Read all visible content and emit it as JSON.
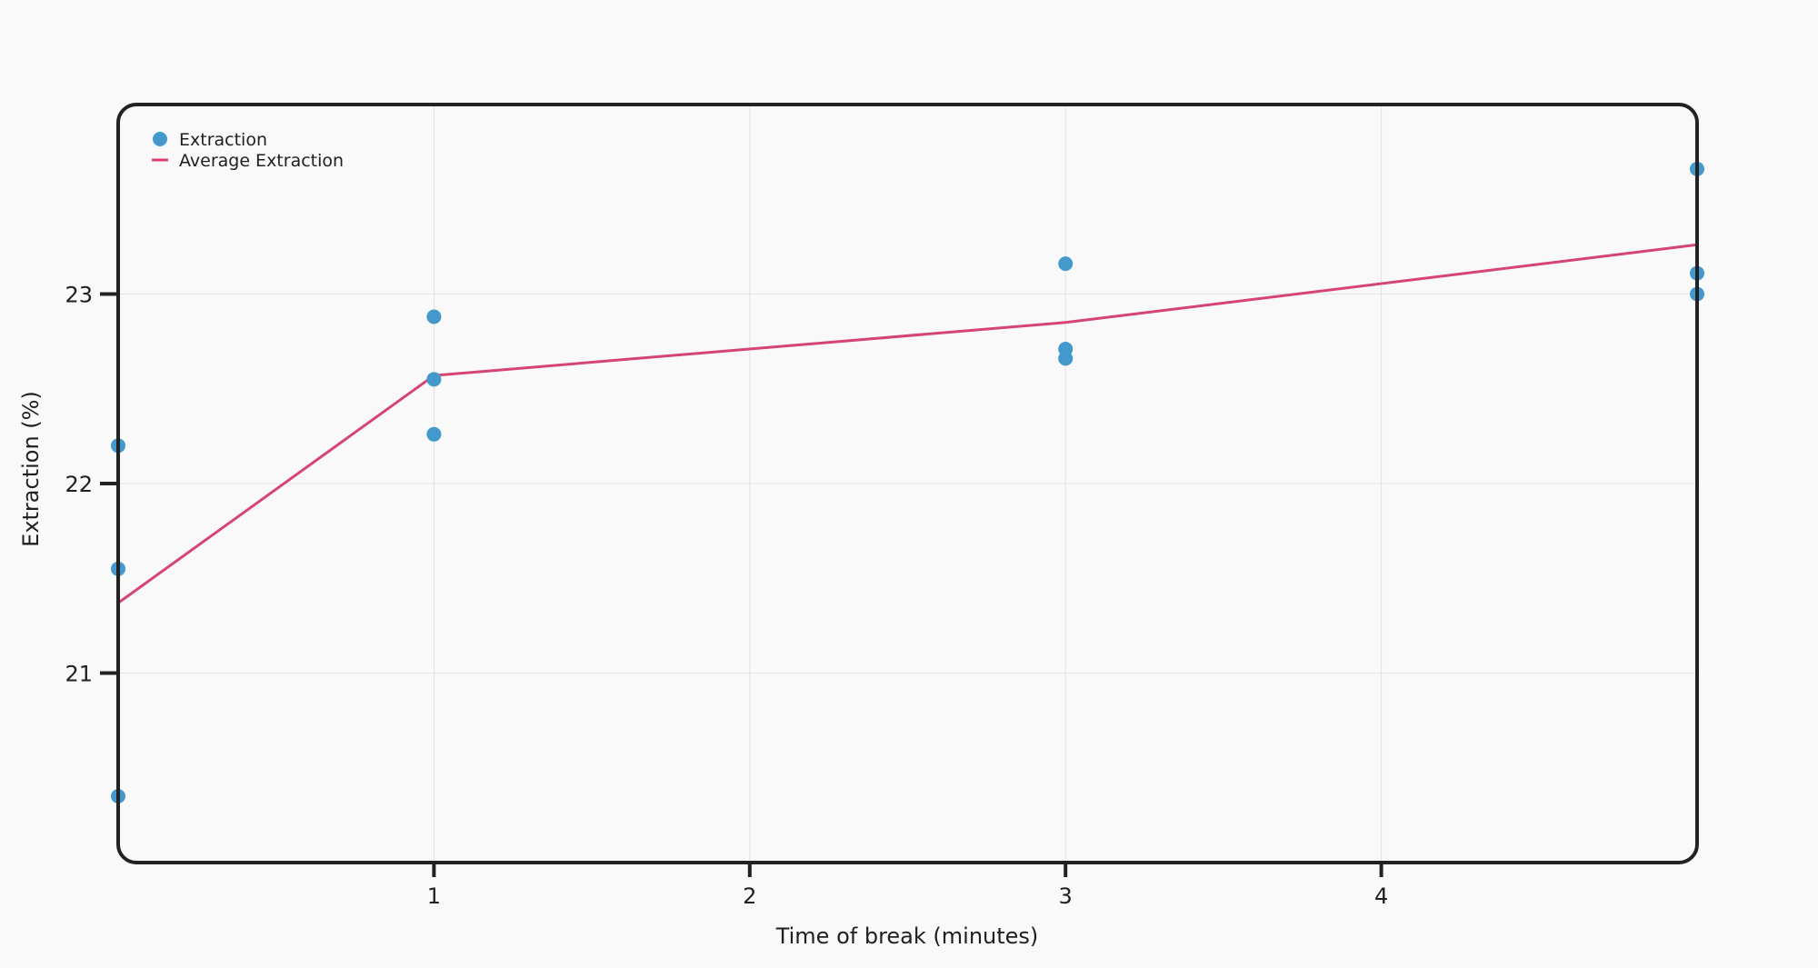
{
  "chart_data": {
    "type": "scatter",
    "title": "",
    "xlabel": "Time of break (minutes)",
    "ylabel": "Extraction (%)",
    "xlim": [
      0,
      5
    ],
    "ylim": [
      20,
      24
    ],
    "x_ticks": [
      1,
      2,
      3,
      4
    ],
    "x_tick_labels": [
      "1",
      "2",
      "3",
      "4"
    ],
    "y_ticks": [
      21,
      22,
      23
    ],
    "y_tick_labels": [
      "21",
      "22",
      "23"
    ],
    "grid": true,
    "legend_position": "top-left",
    "series": [
      {
        "name": "Extraction",
        "kind": "scatter",
        "color": "#4499cc",
        "x": [
          0,
          0,
          0,
          1,
          1,
          1,
          3,
          3,
          3,
          5,
          5,
          5
        ],
        "y": [
          22.2,
          21.55,
          20.35,
          22.88,
          22.55,
          22.26,
          23.16,
          22.71,
          22.66,
          23.66,
          23.11,
          23.0
        ]
      },
      {
        "name": "Average Extraction",
        "kind": "line",
        "color": "#d64571",
        "x": [
          0,
          1,
          3,
          5
        ],
        "y": [
          21.37,
          22.57,
          22.85,
          23.26
        ]
      }
    ]
  }
}
